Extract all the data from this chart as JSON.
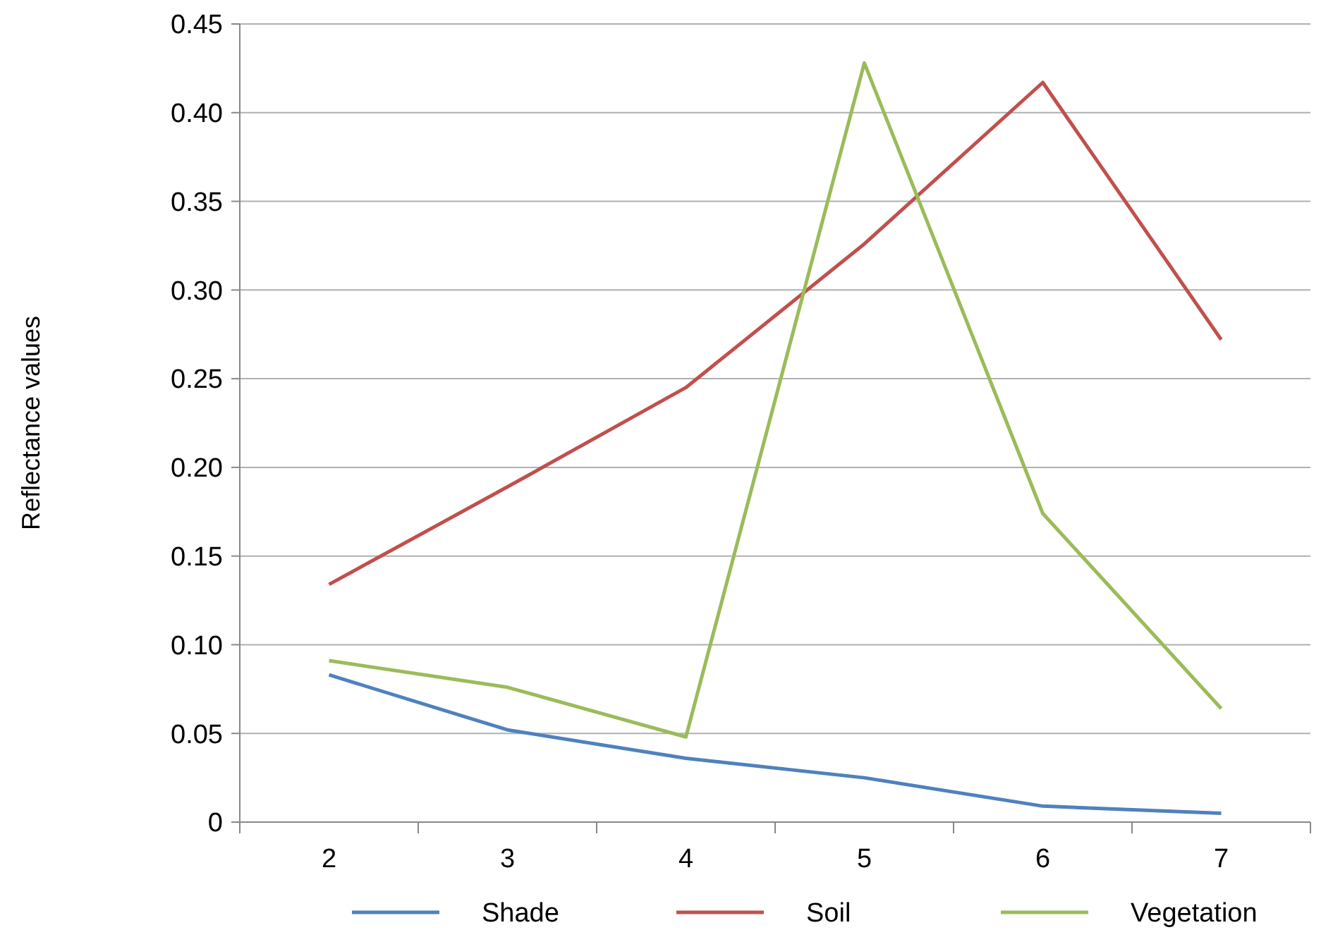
{
  "chart_data": {
    "type": "line",
    "ylabel": "Reflectance values",
    "categories": [
      "2",
      "3",
      "4",
      "5",
      "6",
      "7"
    ],
    "series": [
      {
        "name": "Shade",
        "color": "#4f81bd",
        "values": [
          0.083,
          0.052,
          0.036,
          0.025,
          0.009,
          0.005
        ]
      },
      {
        "name": "Soil",
        "color": "#c0504d",
        "values": [
          0.134,
          0.189,
          0.245,
          0.326,
          0.417,
          0.272
        ]
      },
      {
        "name": "Vegetation",
        "color": "#9bbb59",
        "values": [
          0.091,
          0.076,
          0.048,
          0.428,
          0.174,
          0.064
        ]
      }
    ],
    "ylim": [
      0,
      0.45
    ],
    "yticks": [
      0,
      0.05,
      {
        "value": 0.1,
        "label": "0.10"
      },
      0.15,
      {
        "value": 0.2,
        "label": "0.20"
      },
      0.25,
      {
        "value": 0.3,
        "label": "0.30"
      },
      0.35,
      {
        "value": 0.4,
        "label": "0.40"
      },
      0.45
    ],
    "grid": "y",
    "legend": "bottom",
    "marker": "none",
    "line_style": "solid"
  }
}
